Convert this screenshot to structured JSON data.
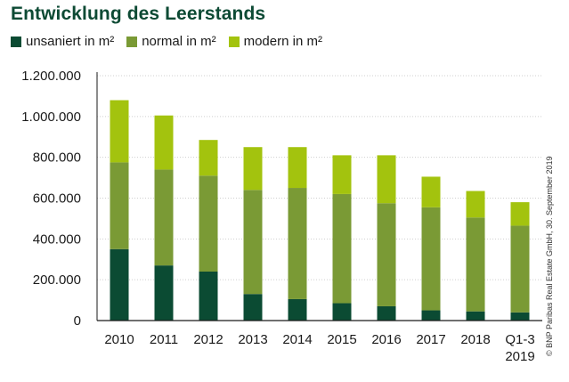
{
  "chart_data": {
    "type": "bar",
    "stacked": true,
    "title": "Entwicklung des Leerstands",
    "categories": [
      "2010",
      "2011",
      "2012",
      "2013",
      "2014",
      "2015",
      "2016",
      "2017",
      "2018",
      "Q1-3 2019"
    ],
    "category_lines": [
      [
        "2010"
      ],
      [
        "2011"
      ],
      [
        "2012"
      ],
      [
        "2013"
      ],
      [
        "2014"
      ],
      [
        "2015"
      ],
      [
        "2016"
      ],
      [
        "2017"
      ],
      [
        "2018"
      ],
      [
        "Q1-3",
        "2019"
      ]
    ],
    "series": [
      {
        "name": "unsaniert in m²",
        "color": "#0b4b33",
        "values": [
          350000,
          270000,
          240000,
          130000,
          105000,
          85000,
          70000,
          50000,
          45000,
          40000
        ]
      },
      {
        "name": "normal in m²",
        "color": "#7a9a35",
        "values": [
          425000,
          470000,
          470000,
          510000,
          545000,
          535000,
          505000,
          505000,
          460000,
          425000
        ]
      },
      {
        "name": "modern in m²",
        "color": "#a3c30e",
        "values": [
          305000,
          265000,
          175000,
          210000,
          200000,
          190000,
          235000,
          150000,
          130000,
          115000
        ]
      }
    ],
    "ylim": [
      0,
      1200000
    ],
    "yticks": [
      0,
      200000,
      400000,
      600000,
      800000,
      1000000,
      1200000
    ],
    "ytick_labels": [
      "0",
      "200.000",
      "400.000",
      "600.000",
      "800.000",
      "1.000.000",
      "1.200.000"
    ],
    "xlabel": "",
    "ylabel": "",
    "legend_position": "top-left",
    "credit": "© BNP Paribas Real Estate GmbH, 30. September 2019"
  }
}
